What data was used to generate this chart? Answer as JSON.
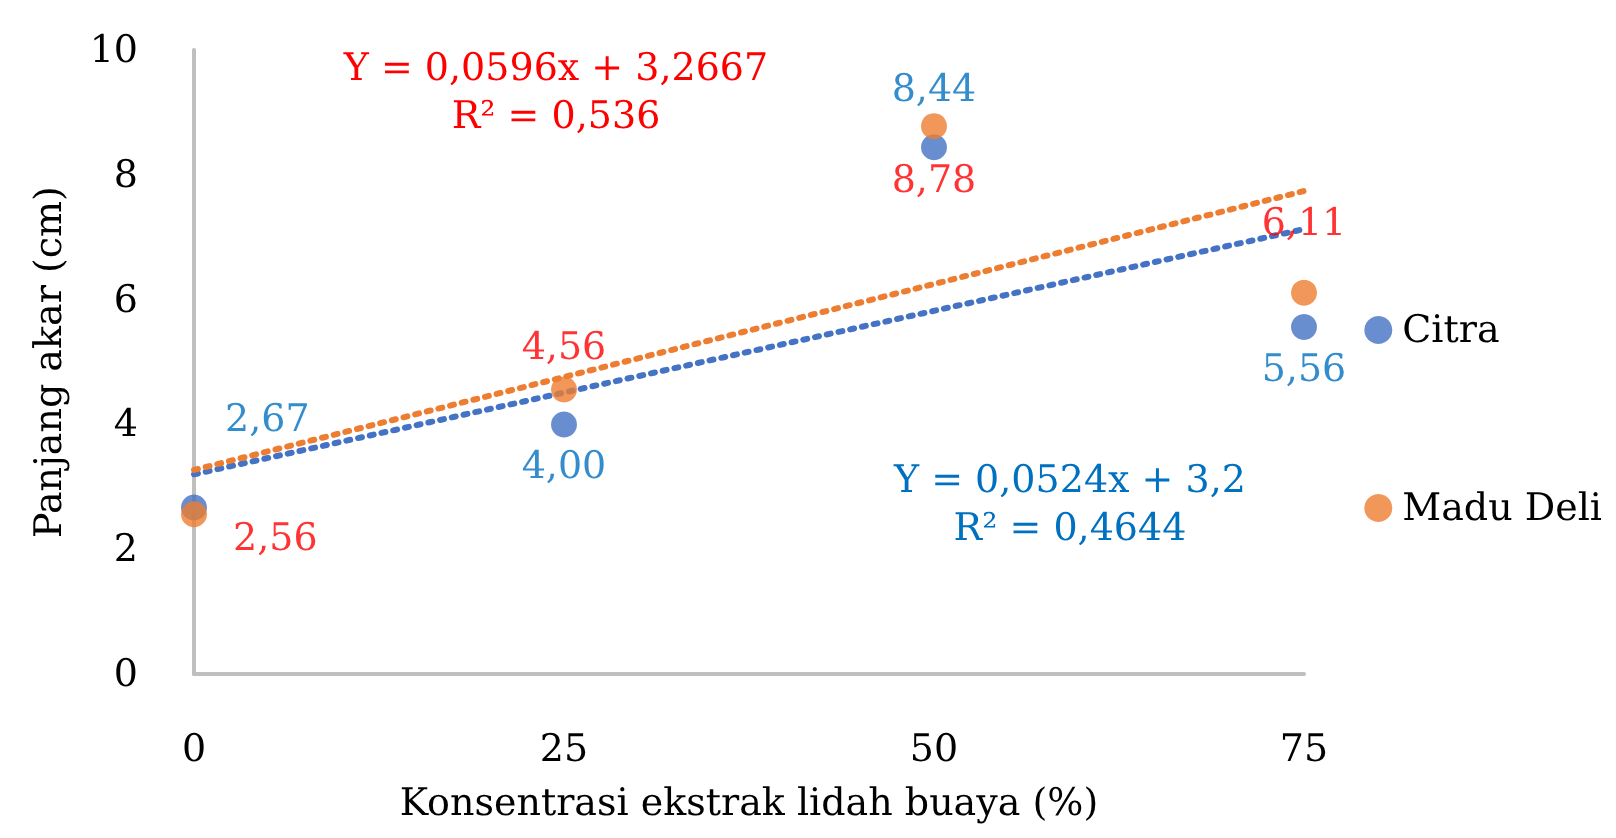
{
  "chart_data": {
    "type": "scatter",
    "xlabel": "Konsentrasi ekstrak lidah buaya (%)",
    "ylabel": "Panjang akar (cm)",
    "xlim": [
      0,
      75
    ],
    "xticks": [
      0,
      25,
      50,
      75
    ],
    "ylim": [
      0,
      10
    ],
    "yticks": [
      0,
      2,
      4,
      6,
      8,
      10
    ],
    "grid": false,
    "legend": "right",
    "marker": "circle",
    "series": [
      {
        "name": "Citra",
        "color": "#4472c4",
        "x": [
          0,
          25,
          50,
          75
        ],
        "values": [
          2.67,
          4.0,
          8.44,
          5.56
        ],
        "value_labels": [
          "2,67",
          "4,00",
          "8,44",
          "5,56"
        ]
      },
      {
        "name": "Madu Deli",
        "color": "#ed7d31",
        "x": [
          0,
          25,
          50,
          75
        ],
        "values": [
          2.56,
          4.56,
          8.78,
          6.11
        ],
        "value_labels": [
          "2,56",
          "4,56",
          "8,78",
          "6,11"
        ]
      },
      {
        "type": "line",
        "color": "#4472c4",
        "x": [
          0,
          75
        ],
        "values": [
          3.2,
          7.13
        ],
        "line_style": "dotted",
        "marker": "none"
      },
      {
        "type": "line",
        "color": "#ed7d31",
        "x": [
          0,
          75
        ],
        "values": [
          3.27,
          7.74
        ],
        "line_style": "dotted",
        "marker": "none"
      }
    ],
    "annotations": [
      "Y = 0,0596x + 3,2667\nR² = 0,536",
      "Y = 0,0524x + 3,2\nR² = 0,4644"
    ]
  }
}
